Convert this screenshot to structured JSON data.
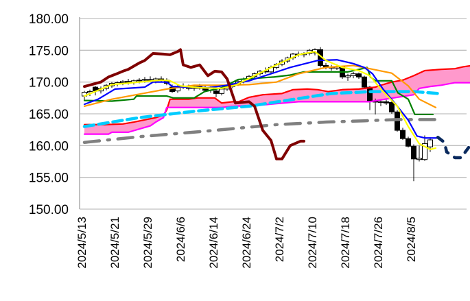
{
  "chart_data": {
    "type": "line",
    "title": "",
    "xlabel": "",
    "ylabel": "",
    "ylim": [
      150,
      180
    ],
    "grid": true,
    "y_ticks": [
      "150.00",
      "155.00",
      "160.00",
      "165.00",
      "170.00",
      "175.00",
      "180.00"
    ],
    "x_ticks": [
      {
        "idx": 0,
        "label": "2024/5/13"
      },
      {
        "idx": 6,
        "label": "2024/5/21"
      },
      {
        "idx": 12,
        "label": "2024/5/29"
      },
      {
        "idx": 18,
        "label": "2024/6/6"
      },
      {
        "idx": 24,
        "label": "2024/6/14"
      },
      {
        "idx": 30,
        "label": "2024/6/24"
      },
      {
        "idx": 36,
        "label": "2024/7/2"
      },
      {
        "idx": 42,
        "label": "2024/7/10"
      },
      {
        "idx": 48,
        "label": "2024/7/18"
      },
      {
        "idx": 54,
        "label": "2024/7/26"
      },
      {
        "idx": 60,
        "label": "2024/8/5"
      }
    ],
    "x_range": [
      -1,
      70.5
    ],
    "candles_ohlc": [
      [
        167.8,
        168.6,
        167.0,
        168.4
      ],
      [
        168.3,
        168.8,
        167.8,
        168.5
      ],
      [
        169.2,
        169.4,
        167.9,
        168.6
      ],
      [
        168.6,
        169.3,
        168.2,
        169.0
      ],
      [
        169.0,
        169.7,
        168.7,
        169.5
      ],
      [
        169.4,
        170.0,
        169.1,
        169.8
      ],
      [
        169.7,
        170.1,
        169.3,
        169.9
      ],
      [
        169.9,
        170.3,
        169.5,
        170.1
      ],
      [
        170.1,
        170.5,
        169.6,
        169.9
      ],
      [
        169.9,
        170.4,
        169.6,
        170.2
      ],
      [
        170.2,
        170.6,
        169.8,
        170.3
      ],
      [
        170.3,
        170.8,
        169.9,
        170.4
      ],
      [
        170.4,
        170.9,
        170.0,
        170.2
      ],
      [
        170.2,
        170.7,
        169.8,
        170.5
      ],
      [
        170.5,
        170.9,
        170.0,
        170.3
      ],
      [
        170.3,
        170.6,
        169.5,
        169.8
      ],
      [
        169.2,
        169.6,
        168.3,
        168.5
      ],
      [
        168.6,
        169.5,
        168.3,
        169.3
      ],
      [
        169.3,
        169.8,
        168.9,
        169.2
      ],
      [
        169.2,
        169.6,
        168.7,
        169.0
      ],
      [
        169.0,
        169.5,
        168.6,
        169.3
      ],
      [
        169.3,
        169.7,
        168.8,
        169.0
      ],
      [
        169.0,
        169.4,
        168.4,
        168.7
      ],
      [
        168.7,
        169.3,
        168.3,
        169.0
      ],
      [
        168.6,
        169.0,
        167.6,
        168.2
      ],
      [
        168.2,
        169.1,
        167.9,
        168.9
      ],
      [
        168.9,
        169.5,
        168.6,
        169.3
      ],
      [
        169.3,
        169.9,
        169.0,
        169.7
      ],
      [
        169.7,
        170.3,
        169.4,
        170.1
      ],
      [
        170.1,
        170.7,
        169.8,
        170.5
      ],
      [
        170.5,
        171.1,
        170.2,
        170.9
      ],
      [
        170.9,
        171.5,
        170.6,
        171.3
      ],
      [
        171.3,
        171.9,
        171.0,
        171.7
      ],
      [
        171.7,
        172.3,
        171.3,
        171.6
      ],
      [
        171.6,
        172.6,
        171.4,
        172.3
      ],
      [
        172.3,
        173.0,
        172.0,
        172.8
      ],
      [
        172.8,
        173.6,
        172.5,
        173.3
      ],
      [
        173.3,
        174.0,
        173.0,
        173.8
      ],
      [
        173.8,
        174.6,
        173.5,
        174.4
      ],
      [
        174.4,
        174.8,
        174.0,
        174.3
      ],
      [
        174.3,
        174.7,
        173.9,
        174.5
      ],
      [
        174.5,
        175.2,
        174.2,
        175.0
      ],
      [
        174.6,
        175.3,
        174.2,
        175.1
      ],
      [
        175.1,
        175.5,
        172.3,
        172.6
      ],
      [
        172.6,
        173.0,
        172.0,
        172.3
      ],
      [
        172.3,
        172.7,
        171.8,
        172.2
      ],
      [
        172.2,
        172.8,
        171.9,
        172.4
      ],
      [
        172.4,
        172.5,
        170.5,
        170.8
      ],
      [
        170.8,
        171.3,
        170.2,
        171.0
      ],
      [
        171.0,
        171.6,
        170.6,
        171.3
      ],
      [
        171.3,
        171.5,
        170.5,
        170.8
      ],
      [
        170.8,
        171.0,
        169.0,
        169.2
      ],
      [
        169.2,
        169.4,
        165.6,
        166.9
      ],
      [
        166.9,
        167.4,
        164.9,
        166.95
      ],
      [
        166.9,
        167.3,
        166.2,
        166.8
      ],
      [
        166.9,
        167.2,
        166.4,
        166.7
      ],
      [
        166.8,
        167.0,
        165.0,
        165.3
      ],
      [
        165.3,
        165.6,
        162.2,
        162.4
      ],
      [
        162.4,
        162.8,
        160.9,
        161.1
      ],
      [
        161.1,
        161.4,
        159.7,
        159.9
      ],
      [
        159.9,
        160.2,
        154.4,
        157.9
      ],
      [
        157.8,
        160.0,
        157.5,
        158.0
      ],
      [
        157.8,
        161.6,
        157.6,
        160.3
      ],
      [
        159.8,
        161.3,
        159.0,
        160.9
      ]
    ],
    "series": [
      {
        "name": "cloud-upper-red",
        "color": "#ff0000",
        "points": [
          [
            0,
            163.3
          ],
          [
            3.75,
            163.3
          ],
          [
            7,
            163.4
          ],
          [
            9,
            163.7
          ],
          [
            13,
            164.4
          ],
          [
            14.4,
            164.8
          ],
          [
            15,
            165.6
          ],
          [
            15.6,
            167.3
          ],
          [
            19,
            167.3
          ],
          [
            20.6,
            167.5
          ],
          [
            23.75,
            167.5
          ],
          [
            25,
            166.7
          ],
          [
            27,
            166.9
          ],
          [
            28.1,
            166.9
          ],
          [
            30,
            167.6
          ],
          [
            32.5,
            168.0
          ],
          [
            36,
            168.2
          ],
          [
            38,
            168.8
          ],
          [
            40.6,
            168.9
          ],
          [
            42.5,
            168.8
          ],
          [
            44.4,
            168.5
          ],
          [
            47,
            168.8
          ],
          [
            50,
            168.9
          ],
          [
            53,
            169.2
          ],
          [
            54,
            169.5
          ],
          [
            56,
            170.0
          ],
          [
            58,
            170.3
          ],
          [
            60,
            171.0
          ],
          [
            62,
            171.8
          ],
          [
            65,
            172.0
          ],
          [
            67.5,
            172.1
          ],
          [
            69,
            172.4
          ],
          [
            70.6,
            172.6
          ]
        ]
      },
      {
        "name": "cloud-lower-magenta",
        "color": "#ff00ff",
        "points": [
          [
            0,
            161.8
          ],
          [
            4.4,
            161.8
          ],
          [
            5,
            162.1
          ],
          [
            8,
            162.1
          ],
          [
            10,
            162.6
          ],
          [
            12,
            163.1
          ],
          [
            13,
            163.7
          ],
          [
            14.4,
            164.4
          ],
          [
            15,
            166.0
          ],
          [
            25,
            166.0
          ],
          [
            27.5,
            166.2
          ],
          [
            32.5,
            166.4
          ],
          [
            35,
            166.6
          ],
          [
            39,
            166.9
          ],
          [
            52,
            166.9
          ],
          [
            54,
            167.2
          ],
          [
            57,
            167.6
          ],
          [
            60,
            168.0
          ],
          [
            61,
            169.0
          ],
          [
            63,
            169.3
          ],
          [
            65,
            169.5
          ],
          [
            67.5,
            169.9
          ],
          [
            70.6,
            169.9
          ]
        ]
      },
      {
        "name": "gray-dashdot",
        "color": "#808080",
        "dash": "dashdot",
        "points": [
          [
            0,
            160.5
          ],
          [
            10,
            161.4
          ],
          [
            22.5,
            162.3
          ],
          [
            35,
            163.3
          ],
          [
            44,
            163.7
          ],
          [
            51,
            163.9
          ],
          [
            57,
            164.1
          ],
          [
            64.5,
            164.1
          ]
        ]
      },
      {
        "name": "cyan-dashed",
        "color": "#00ccff",
        "dash": "dash",
        "points": [
          [
            0,
            163.0
          ],
          [
            10,
            164.4
          ],
          [
            20,
            165.4
          ],
          [
            30,
            166.2
          ],
          [
            39,
            167.4
          ],
          [
            45,
            168.2
          ],
          [
            52.5,
            168.5
          ],
          [
            60,
            168.5
          ],
          [
            64.5,
            168.2
          ]
        ]
      },
      {
        "name": "green",
        "color": "#008000",
        "points": [
          [
            0,
            167.1
          ],
          [
            5,
            167.0
          ],
          [
            9,
            167.3
          ],
          [
            9.5,
            167.8
          ],
          [
            15,
            167.8
          ],
          [
            16.2,
            167.5
          ],
          [
            20,
            167.5
          ],
          [
            21.9,
            168.5
          ],
          [
            25,
            169.1
          ],
          [
            28,
            170.4
          ],
          [
            34.6,
            170.8
          ],
          [
            37.5,
            171.1
          ],
          [
            40,
            171.6
          ],
          [
            48,
            171.6
          ],
          [
            50.6,
            172.1
          ],
          [
            51.5,
            172.3
          ],
          [
            52.1,
            170.8
          ],
          [
            53,
            170.2
          ],
          [
            56,
            170.2
          ],
          [
            57.1,
            168.3
          ],
          [
            59,
            167.3
          ],
          [
            60.2,
            164.9
          ],
          [
            63.5,
            164.9
          ]
        ]
      },
      {
        "name": "orange",
        "color": "#ff9900",
        "points": [
          [
            0,
            166.2
          ],
          [
            5,
            167.3
          ],
          [
            10,
            168.1
          ],
          [
            15,
            168.9
          ],
          [
            20,
            169.5
          ],
          [
            25,
            169.5
          ],
          [
            30,
            169.6
          ],
          [
            35,
            170.0
          ],
          [
            39,
            171.3
          ],
          [
            44,
            172.3
          ],
          [
            49,
            172.6
          ],
          [
            52,
            172.1
          ],
          [
            56,
            171.4
          ],
          [
            59,
            169.4
          ],
          [
            61,
            167.3
          ],
          [
            64,
            166.0
          ]
        ]
      },
      {
        "name": "blue",
        "color": "#0000ff",
        "points": [
          [
            0,
            166.5
          ],
          [
            2.5,
            167.3
          ],
          [
            5.6,
            168.9
          ],
          [
            9.4,
            169.1
          ],
          [
            11,
            169.2
          ],
          [
            12.5,
            170.0
          ],
          [
            15,
            170.0
          ],
          [
            16,
            169.3
          ],
          [
            22.5,
            169.1
          ],
          [
            26,
            169.5
          ],
          [
            30,
            170.2
          ],
          [
            34,
            171.3
          ],
          [
            37.5,
            172.3
          ],
          [
            42.5,
            173.4
          ],
          [
            46,
            173.5
          ],
          [
            49,
            172.9
          ],
          [
            51,
            172.3
          ],
          [
            52.5,
            171.3
          ],
          [
            54.4,
            168.9
          ],
          [
            57,
            166.2
          ],
          [
            59,
            164.0
          ],
          [
            60.6,
            161.5
          ],
          [
            62,
            161.2
          ],
          [
            64.4,
            161.2
          ]
        ]
      },
      {
        "name": "yellow",
        "color": "#ffff00",
        "points": [
          [
            0,
            167.8
          ],
          [
            5,
            169.6
          ],
          [
            10,
            170.0
          ],
          [
            14,
            170.3
          ],
          [
            15.6,
            170.2
          ],
          [
            17.5,
            169.4
          ],
          [
            21,
            169.1
          ],
          [
            25,
            169.0
          ],
          [
            27.5,
            169.5
          ],
          [
            31,
            171.0
          ],
          [
            35,
            172.7
          ],
          [
            39,
            174.3
          ],
          [
            42,
            174.8
          ],
          [
            44,
            173.4
          ],
          [
            47,
            172.3
          ],
          [
            50,
            171.8
          ],
          [
            52,
            171.0
          ],
          [
            54,
            168.9
          ],
          [
            57,
            166.2
          ],
          [
            59,
            163.0
          ],
          [
            61,
            160.3
          ],
          [
            63,
            159.4
          ],
          [
            64,
            159.6
          ]
        ]
      },
      {
        "name": "lagging-darkred",
        "color": "#7f0000",
        "points": [
          [
            0,
            169.3
          ],
          [
            3,
            170.0
          ],
          [
            4.4,
            170.8
          ],
          [
            5.6,
            171.2
          ],
          [
            7,
            171.7
          ],
          [
            8,
            172.0
          ],
          [
            9.4,
            172.7
          ],
          [
            10,
            173.0
          ],
          [
            11,
            173.4
          ],
          [
            12.5,
            174.5
          ],
          [
            14.4,
            174.4
          ],
          [
            15.6,
            174.3
          ],
          [
            17,
            174.8
          ],
          [
            17.5,
            175.1
          ],
          [
            18,
            172.7
          ],
          [
            19.4,
            172.3
          ],
          [
            21,
            172.7
          ],
          [
            22.5,
            171.0
          ],
          [
            23.75,
            171.7
          ],
          [
            25,
            171.6
          ],
          [
            26,
            170.5
          ],
          [
            27.5,
            166.7
          ],
          [
            30,
            166.9
          ],
          [
            31,
            166.2
          ],
          [
            32.5,
            162.4
          ],
          [
            34,
            160.8
          ],
          [
            35,
            157.9
          ],
          [
            36,
            157.9
          ],
          [
            37.5,
            160.0
          ],
          [
            39.4,
            160.7
          ],
          [
            40,
            160.7
          ]
        ]
      },
      {
        "name": "navy-dotted",
        "color": "#0a2a5e",
        "dash": "dot",
        "points": [
          [
            64.4,
            161.3
          ],
          [
            65.6,
            160.5
          ],
          [
            66,
            159.0
          ],
          [
            67.5,
            158.1
          ],
          [
            68.75,
            158.1
          ],
          [
            69.4,
            159.0
          ],
          [
            70,
            159.7
          ]
        ]
      }
    ],
    "colors": {
      "cloud_fill": "#ff99cc",
      "grid": "#c0c0c0",
      "axis": "#a0a0a0",
      "candle_down": "#000000",
      "candle_up": "#ffffff"
    }
  }
}
